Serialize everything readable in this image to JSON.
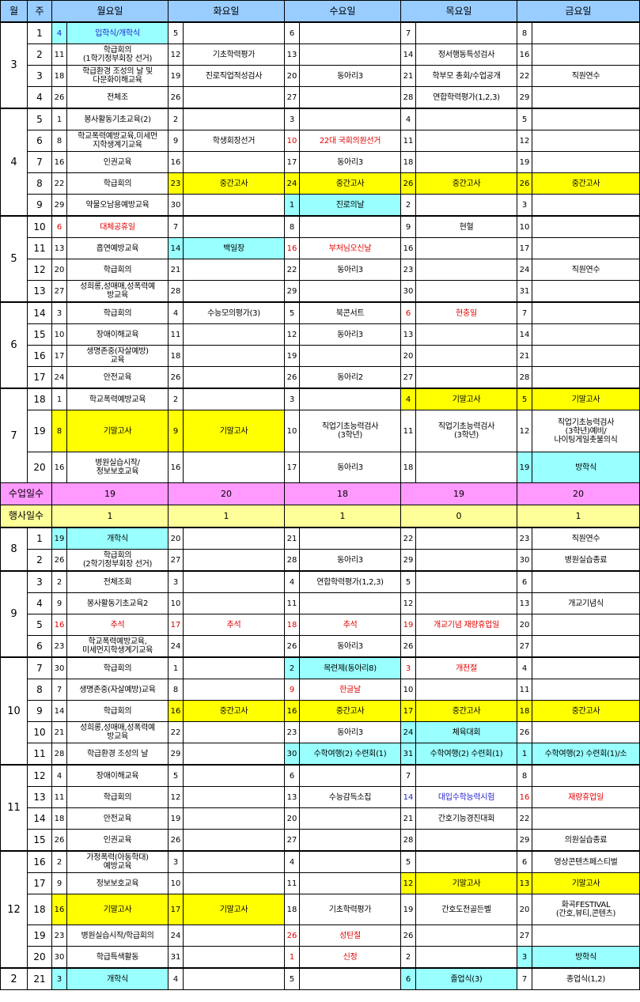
{
  "header": {
    "month": "월",
    "week": "주",
    "days": [
      "월요일",
      "화요일",
      "수요일",
      "목요일",
      "금요일"
    ]
  },
  "summary": {
    "school_days_label": "수업일수",
    "school_days": [
      "19",
      "20",
      "18",
      "19",
      "20"
    ],
    "event_days_label": "행사일수",
    "event_days": [
      "1",
      "1",
      "1",
      "0",
      "1"
    ]
  },
  "rows": [
    {
      "m": "3",
      "w": "1",
      "c": [
        [
          "4",
          "입학식/개학식",
          "blue",
          "cyan"
        ],
        [
          "5",
          "",
          ""
        ],
        [
          "6",
          "",
          ""
        ],
        [
          "7",
          "",
          ""
        ],
        [
          "8",
          "",
          ""
        ]
      ]
    },
    {
      "w": "2",
      "c": [
        [
          "11",
          "학급회의\n(1학기정부회장 선거)",
          ""
        ],
        [
          "12",
          "기초학력평가",
          ""
        ],
        [
          "13",
          "",
          ""
        ],
        [
          "14",
          "정서행동특성검사",
          ""
        ],
        [
          "16",
          "",
          ""
        ]
      ]
    },
    {
      "w": "3",
      "c": [
        [
          "18",
          "학급환경 조성의 날 및\n다문화이해교육",
          ""
        ],
        [
          "19",
          "진로직업적성검사",
          ""
        ],
        [
          "20",
          "동아리3",
          ""
        ],
        [
          "21",
          "학부모 총회/수업공개",
          ""
        ],
        [
          "22",
          "직원연수",
          ""
        ]
      ]
    },
    {
      "w": "4",
      "c": [
        [
          "26",
          "전체조",
          ""
        ],
        [
          "26",
          "",
          ""
        ],
        [
          "27",
          "",
          ""
        ],
        [
          "28",
          "연합학력평가(1,2,3)",
          ""
        ],
        [
          "29",
          "",
          ""
        ]
      ]
    },
    {
      "m": "4",
      "w": "5",
      "c": [
        [
          "1",
          "봉사활동기초교육(2)",
          ""
        ],
        [
          "2",
          "",
          ""
        ],
        [
          "3",
          "",
          ""
        ],
        [
          "4",
          "",
          ""
        ],
        [
          "5",
          "",
          ""
        ]
      ]
    },
    {
      "w": "6",
      "c": [
        [
          "8",
          "학교폭력예방교육,미세먼\n지학생계기교육",
          ""
        ],
        [
          "9",
          "학생회장선거",
          ""
        ],
        [
          "10",
          "22대 국회의원선거",
          "red"
        ],
        [
          "11",
          "",
          ""
        ],
        [
          "12",
          "",
          ""
        ]
      ]
    },
    {
      "w": "7",
      "c": [
        [
          "16",
          "인권교육",
          ""
        ],
        [
          "16",
          "",
          ""
        ],
        [
          "17",
          "동아리3",
          ""
        ],
        [
          "18",
          "",
          ""
        ],
        [
          "19",
          "",
          ""
        ]
      ]
    },
    {
      "w": "8",
      "c": [
        [
          "22",
          "학급회의",
          ""
        ],
        [
          "23",
          "중간고사",
          "",
          "yel"
        ],
        [
          "24",
          "중간고사",
          "",
          "yel"
        ],
        [
          "26",
          "중간고사",
          "",
          "yel"
        ],
        [
          "26",
          "중간고사",
          "",
          "yel"
        ]
      ]
    },
    {
      "w": "9",
      "c": [
        [
          "29",
          "약물오남용예방교육",
          ""
        ],
        [
          "30",
          "",
          ""
        ],
        [
          "1",
          "진로의날",
          "",
          "cyan2"
        ],
        [
          "2",
          "",
          ""
        ],
        [
          "3",
          "",
          ""
        ]
      ]
    },
    {
      "m": "5",
      "w": "10",
      "c": [
        [
          "6",
          "대체공휴일",
          "red"
        ],
        [
          "7",
          "",
          ""
        ],
        [
          "8",
          "",
          ""
        ],
        [
          "9",
          "현혈",
          ""
        ],
        [
          "10",
          "",
          ""
        ]
      ]
    },
    {
      "w": "11",
      "c": [
        [
          "13",
          "흡연예방교육",
          ""
        ],
        [
          "14",
          "백일장",
          "",
          "cyan2"
        ],
        [
          "16",
          "부처님오신날",
          "red"
        ],
        [
          "16",
          "",
          ""
        ],
        [
          "17",
          "",
          ""
        ]
      ]
    },
    {
      "w": "12",
      "c": [
        [
          "20",
          "학급회의",
          ""
        ],
        [
          "21",
          "",
          ""
        ],
        [
          "22",
          "동아리3",
          ""
        ],
        [
          "23",
          "",
          ""
        ],
        [
          "24",
          "직원연수",
          ""
        ]
      ]
    },
    {
      "w": "13",
      "c": [
        [
          "27",
          "성희롱,성매매,성폭력예\n방교육",
          ""
        ],
        [
          "28",
          "",
          ""
        ],
        [
          "29",
          "",
          ""
        ],
        [
          "30",
          "",
          ""
        ],
        [
          "31",
          "",
          ""
        ]
      ]
    },
    {
      "m": "6",
      "w": "14",
      "c": [
        [
          "3",
          "학급회의",
          ""
        ],
        [
          "4",
          "수능모의평가(3)",
          ""
        ],
        [
          "5",
          "북콘서트",
          ""
        ],
        [
          "6",
          "현충일",
          "red"
        ],
        [
          "7",
          "",
          ""
        ]
      ]
    },
    {
      "w": "15",
      "c": [
        [
          "10",
          "장애이해교육",
          ""
        ],
        [
          "11",
          "",
          ""
        ],
        [
          "12",
          "동아리3",
          ""
        ],
        [
          "13",
          "",
          ""
        ],
        [
          "14",
          "",
          ""
        ]
      ]
    },
    {
      "w": "16",
      "c": [
        [
          "17",
          "생명존중(자살예방)\n교육",
          ""
        ],
        [
          "18",
          "",
          ""
        ],
        [
          "19",
          "",
          ""
        ],
        [
          "20",
          "",
          ""
        ],
        [
          "21",
          "",
          ""
        ]
      ]
    },
    {
      "w": "17",
      "c": [
        [
          "24",
          "안전교육",
          ""
        ],
        [
          "26",
          "",
          ""
        ],
        [
          "26",
          "동아리2",
          ""
        ],
        [
          "27",
          "",
          ""
        ],
        [
          "28",
          "",
          ""
        ]
      ]
    },
    {
      "m": "7",
      "w": "18",
      "c": [
        [
          "1",
          "학교폭력예방교육",
          ""
        ],
        [
          "2",
          "",
          ""
        ],
        [
          "3",
          "",
          ""
        ],
        [
          "4",
          "기말고사",
          "",
          "yel"
        ],
        [
          "5",
          "기말고사",
          "",
          "yel"
        ]
      ]
    },
    {
      "w": "19",
      "tall": true,
      "c": [
        [
          "8",
          "기말고사",
          "",
          "yel"
        ],
        [
          "9",
          "기말고사",
          "",
          "yel"
        ],
        [
          "10",
          "직업기초능력검사\n(3학년)",
          ""
        ],
        [
          "11",
          "직업기초능력검사\n(3학년)",
          ""
        ],
        [
          "12",
          "직업기초능력검사\n(3학년)예비/\n나이팅게일촛불의식",
          ""
        ]
      ]
    },
    {
      "w": "20",
      "mid": true,
      "c": [
        [
          "16",
          "병원실습시작/\n정보보호교육",
          ""
        ],
        [
          "16",
          "",
          ""
        ],
        [
          "17",
          "동아리3",
          ""
        ],
        [
          "18",
          "",
          ""
        ],
        [
          "19",
          "방학식",
          "",
          "cyanB"
        ]
      ]
    },
    {
      "m": "8",
      "w": "1",
      "c": [
        [
          "19",
          "개학식",
          "",
          "cyanB"
        ],
        [
          "20",
          "",
          ""
        ],
        [
          "21",
          "",
          ""
        ],
        [
          "22",
          "",
          ""
        ],
        [
          "23",
          "직원연수",
          ""
        ]
      ]
    },
    {
      "w": "2",
      "c": [
        [
          "26",
          "학급회의\n(2학기정부회장 선거)",
          ""
        ],
        [
          "27",
          "",
          ""
        ],
        [
          "28",
          "동아리3",
          ""
        ],
        [
          "29",
          "",
          ""
        ],
        [
          "30",
          "병원실습종료",
          ""
        ]
      ]
    },
    {
      "m": "9",
      "w": "3",
      "c": [
        [
          "2",
          "전체조회",
          ""
        ],
        [
          "3",
          "",
          ""
        ],
        [
          "4",
          "연합학력평가(1,2,3)",
          ""
        ],
        [
          "5",
          "",
          ""
        ],
        [
          "6",
          "",
          ""
        ]
      ]
    },
    {
      "w": "4",
      "c": [
        [
          "9",
          "봉사활동기초교육2",
          ""
        ],
        [
          "10",
          "",
          ""
        ],
        [
          "11",
          "",
          ""
        ],
        [
          "12",
          "",
          ""
        ],
        [
          "13",
          "개교기념식",
          ""
        ]
      ]
    },
    {
      "w": "5",
      "c": [
        [
          "16",
          "추석",
          "red"
        ],
        [
          "17",
          "추석",
          "red"
        ],
        [
          "18",
          "추석",
          "red"
        ],
        [
          "19",
          "개교기념 재량휴업일",
          "red"
        ],
        [
          "20",
          "",
          ""
        ]
      ]
    },
    {
      "w": "6",
      "c": [
        [
          "23",
          "학교폭력예방교육,\n미세먼지학생계기교육",
          ""
        ],
        [
          "24",
          "",
          ""
        ],
        [
          "26",
          "동아리3",
          ""
        ],
        [
          "26",
          "",
          ""
        ],
        [
          "27",
          "",
          ""
        ]
      ]
    },
    {
      "m": "10",
      "w": "7",
      "c": [
        [
          "30",
          "학급회의",
          ""
        ],
        [
          "1",
          "",
          ""
        ],
        [
          "2",
          "목련제(동아리8)",
          "",
          "cyan2"
        ],
        [
          "3",
          "개천절",
          "red"
        ],
        [
          "4",
          "",
          ""
        ]
      ]
    },
    {
      "w": "8",
      "c": [
        [
          "7",
          "생명존중(자살예방)교육",
          ""
        ],
        [
          "8",
          "",
          ""
        ],
        [
          "9",
          "한글날",
          "red"
        ],
        [
          "10",
          "",
          ""
        ],
        [
          "11",
          "",
          ""
        ]
      ]
    },
    {
      "w": "9",
      "c": [
        [
          "14",
          "학급회의",
          ""
        ],
        [
          "16",
          "중간고사",
          "",
          "yel"
        ],
        [
          "16",
          "중간고사",
          "",
          "yel"
        ],
        [
          "17",
          "중간고사",
          "",
          "yel"
        ],
        [
          "18",
          "중간고사",
          "",
          "yel"
        ]
      ]
    },
    {
      "w": "10",
      "c": [
        [
          "21",
          "성희롱,성매매,성폭력예\n방교육",
          ""
        ],
        [
          "22",
          "",
          ""
        ],
        [
          "23",
          "동아리3",
          ""
        ],
        [
          "24",
          "체육대회",
          "",
          "cyan2"
        ],
        [
          "26",
          "",
          ""
        ]
      ]
    },
    {
      "w": "11",
      "c": [
        [
          "28",
          "학급환경 조성의 날",
          ""
        ],
        [
          "29",
          "",
          ""
        ],
        [
          "30",
          "수학여행(2) 수련회(1)",
          "",
          "cyan2"
        ],
        [
          "31",
          "수학여행(2) 수련회(1)",
          "",
          "cyan2"
        ],
        [
          "1",
          "수학여행(2) 수련회(1)/소",
          "",
          "cyan2"
        ]
      ]
    },
    {
      "m": "11",
      "w": "12",
      "c": [
        [
          "4",
          "장애이해교육",
          ""
        ],
        [
          "5",
          "",
          ""
        ],
        [
          "6",
          "",
          ""
        ],
        [
          "7",
          "",
          ""
        ],
        [
          "8",
          "",
          ""
        ]
      ]
    },
    {
      "w": "13",
      "c": [
        [
          "11",
          "학급회의",
          ""
        ],
        [
          "12",
          "",
          ""
        ],
        [
          "13",
          "수능감독소집",
          ""
        ],
        [
          "14",
          "대입수학능력시험",
          "blue"
        ],
        [
          "16",
          "재량휴업일",
          "red"
        ]
      ]
    },
    {
      "w": "14",
      "c": [
        [
          "18",
          "안전교육",
          ""
        ],
        [
          "19",
          "",
          ""
        ],
        [
          "20",
          "",
          ""
        ],
        [
          "21",
          "간호기능경진대회",
          ""
        ],
        [
          "22",
          "",
          ""
        ]
      ]
    },
    {
      "w": "15",
      "c": [
        [
          "26",
          "인권교육",
          ""
        ],
        [
          "26",
          "",
          ""
        ],
        [
          "27",
          "",
          ""
        ],
        [
          "28",
          "",
          ""
        ],
        [
          "29",
          "의원실습종료",
          ""
        ]
      ]
    },
    {
      "m": "12",
      "w": "16",
      "c": [
        [
          "2",
          "가정폭력(아동학대)\n예방교육",
          ""
        ],
        [
          "3",
          "",
          ""
        ],
        [
          "4",
          "",
          ""
        ],
        [
          "5",
          "",
          ""
        ],
        [
          "6",
          "영상콘텐츠페스티벌",
          ""
        ]
      ]
    },
    {
      "w": "17",
      "c": [
        [
          "9",
          "정보보호교육",
          ""
        ],
        [
          "10",
          "",
          ""
        ],
        [
          "11",
          "",
          ""
        ],
        [
          "12",
          "기말고사",
          "",
          "yel"
        ],
        [
          "13",
          "기말고사",
          "",
          "yel"
        ]
      ]
    },
    {
      "w": "18",
      "tall2": true,
      "c": [
        [
          "16",
          "기말고사",
          "",
          "yel"
        ],
        [
          "17",
          "기말고사",
          "",
          "yel"
        ],
        [
          "18",
          "기초학력평가",
          ""
        ],
        [
          "19",
          "간호도전골든벨",
          ""
        ],
        [
          "20",
          "화곡FESTIVAL\n(간호,뷰티,콘텐츠)",
          ""
        ]
      ]
    },
    {
      "w": "19",
      "c": [
        [
          "23",
          "병원실습시작/학급회의",
          ""
        ],
        [
          "24",
          "",
          ""
        ],
        [
          "26",
          "성탄절",
          "red"
        ],
        [
          "26",
          "",
          ""
        ],
        [
          "27",
          "",
          ""
        ]
      ]
    },
    {
      "w": "20",
      "c": [
        [
          "30",
          "학급특색활동",
          ""
        ],
        [
          "31",
          "",
          ""
        ],
        [
          "1",
          "신정",
          "red"
        ],
        [
          "2",
          "",
          ""
        ],
        [
          "3",
          "방학식",
          "",
          "cyanB"
        ]
      ]
    },
    {
      "m": "2",
      "w": "21",
      "c": [
        [
          "3",
          "개학식",
          "",
          "cyan2"
        ],
        [
          "4",
          "",
          ""
        ],
        [
          "5",
          "",
          ""
        ],
        [
          "6",
          "졸업식(3)",
          "",
          "cyan2"
        ],
        [
          "7",
          "종업식(1,2)",
          ""
        ]
      ]
    }
  ],
  "colors": {
    "header": "#99ccff",
    "exam": "#ffff00",
    "event": "#99ffff",
    "summary_school": "#ff99ff",
    "summary_event": "#ffff99",
    "holiday": "#e00000",
    "blue_text": "#1f1fd0"
  }
}
